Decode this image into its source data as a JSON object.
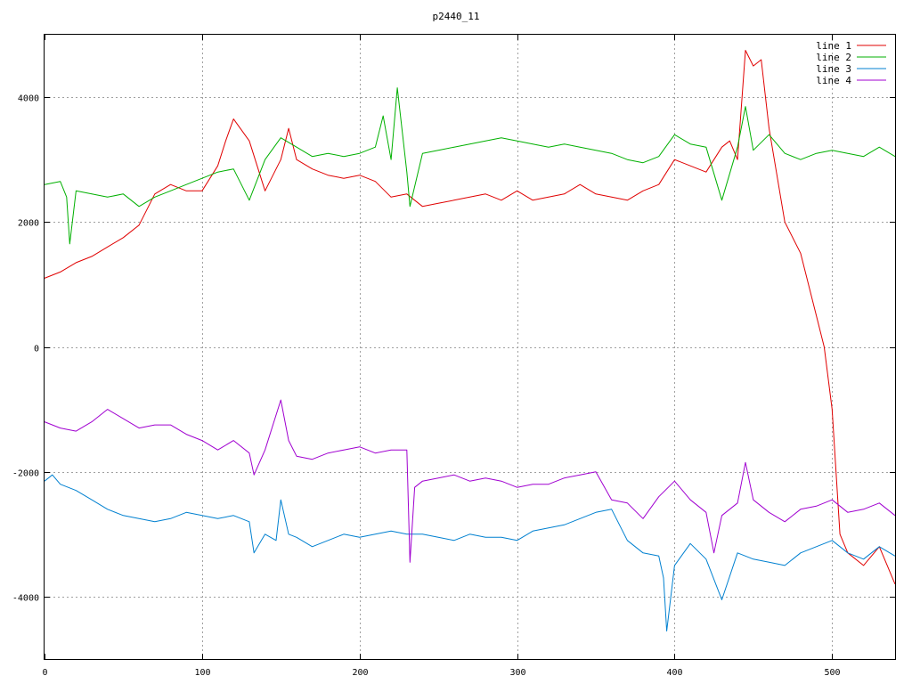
{
  "chart_data": {
    "type": "line",
    "title": "p2440_11",
    "xlabel": "",
    "ylabel": "",
    "xlim": [
      0,
      540
    ],
    "ylim": [
      -5000,
      5000
    ],
    "x_ticks": [
      0,
      100,
      200,
      300,
      400,
      500
    ],
    "y_ticks": [
      -4000,
      -2000,
      0,
      2000,
      4000
    ],
    "grid": true,
    "legend_position": "top-right",
    "series": [
      {
        "name": "line 1",
        "color": "#e00000",
        "x": [
          0,
          10,
          20,
          30,
          40,
          50,
          60,
          70,
          80,
          90,
          100,
          110,
          115,
          120,
          130,
          140,
          150,
          155,
          160,
          170,
          180,
          190,
          200,
          210,
          220,
          230,
          240,
          250,
          260,
          270,
          280,
          290,
          300,
          310,
          320,
          330,
          340,
          350,
          360,
          370,
          380,
          390,
          400,
          410,
          420,
          430,
          435,
          440,
          445,
          450,
          455,
          460,
          470,
          480,
          490,
          495,
          500,
          505,
          510,
          520,
          530,
          540
        ],
        "values": [
          1100,
          1200,
          1350,
          1450,
          1600,
          1750,
          1950,
          2450,
          2600,
          2500,
          2500,
          2900,
          3300,
          3650,
          3300,
          2500,
          3000,
          3500,
          3000,
          2850,
          2750,
          2700,
          2750,
          2650,
          2400,
          2450,
          2250,
          2300,
          2350,
          2400,
          2450,
          2350,
          2500,
          2350,
          2400,
          2450,
          2600,
          2450,
          2400,
          2350,
          2500,
          2600,
          3000,
          2900,
          2800,
          3200,
          3300,
          3000,
          4750,
          4500,
          4600,
          3500,
          2000,
          1500,
          500,
          0,
          -1000,
          -3000,
          -3300,
          -3500,
          -3200,
          -3800
        ]
      },
      {
        "name": "line 2",
        "color": "#00b000",
        "x": [
          0,
          10,
          14,
          16,
          20,
          30,
          40,
          50,
          60,
          70,
          80,
          90,
          100,
          110,
          120,
          130,
          140,
          150,
          160,
          170,
          180,
          190,
          200,
          210,
          215,
          220,
          224,
          230,
          232,
          240,
          250,
          260,
          270,
          280,
          290,
          300,
          310,
          320,
          330,
          340,
          350,
          360,
          370,
          380,
          390,
          400,
          410,
          420,
          430,
          440,
          445,
          450,
          460,
          470,
          480,
          490,
          500,
          510,
          520,
          530,
          540
        ],
        "values": [
          2600,
          2650,
          2400,
          1650,
          2500,
          2450,
          2400,
          2450,
          2250,
          2400,
          2500,
          2600,
          2700,
          2800,
          2850,
          2350,
          3000,
          3350,
          3200,
          3050,
          3100,
          3050,
          3100,
          3200,
          3700,
          3000,
          4150,
          2800,
          2250,
          3100,
          3150,
          3200,
          3250,
          3300,
          3350,
          3300,
          3250,
          3200,
          3250,
          3200,
          3150,
          3100,
          3000,
          2950,
          3050,
          3400,
          3250,
          3200,
          2350,
          3200,
          3850,
          3150,
          3400,
          3100,
          3000,
          3100,
          3150,
          3100,
          3050,
          3200,
          3050
        ]
      },
      {
        "name": "line 3",
        "color": "#0080d0",
        "x": [
          0,
          5,
          10,
          20,
          30,
          40,
          50,
          60,
          70,
          80,
          90,
          100,
          110,
          120,
          130,
          133,
          140,
          147,
          150,
          155,
          160,
          170,
          180,
          190,
          200,
          210,
          220,
          230,
          240,
          250,
          260,
          270,
          280,
          290,
          300,
          310,
          320,
          330,
          340,
          350,
          360,
          370,
          380,
          390,
          393,
          395,
          400,
          410,
          420,
          430,
          440,
          450,
          460,
          470,
          480,
          490,
          500,
          510,
          520,
          530,
          540
        ],
        "values": [
          -2150,
          -2050,
          -2200,
          -2300,
          -2450,
          -2600,
          -2700,
          -2750,
          -2800,
          -2750,
          -2650,
          -2700,
          -2750,
          -2700,
          -2800,
          -3300,
          -3000,
          -3100,
          -2450,
          -3000,
          -3050,
          -3200,
          -3100,
          -3000,
          -3050,
          -3000,
          -2950,
          -3000,
          -3000,
          -3050,
          -3100,
          -3000,
          -3050,
          -3050,
          -3100,
          -2950,
          -2900,
          -2850,
          -2750,
          -2650,
          -2600,
          -3100,
          -3300,
          -3350,
          -3700,
          -4550,
          -3500,
          -3150,
          -3400,
          -4050,
          -3300,
          -3400,
          -3450,
          -3500,
          -3300,
          -3200,
          -3100,
          -3300,
          -3400,
          -3200,
          -3350
        ]
      },
      {
        "name": "line 4",
        "color": "#a000d0",
        "x": [
          0,
          10,
          20,
          30,
          40,
          50,
          60,
          70,
          80,
          90,
          100,
          110,
          120,
          130,
          133,
          140,
          150,
          155,
          160,
          170,
          180,
          190,
          200,
          210,
          220,
          230,
          232,
          235,
          240,
          250,
          260,
          270,
          280,
          290,
          300,
          310,
          320,
          330,
          340,
          350,
          360,
          370,
          380,
          390,
          400,
          410,
          420,
          425,
          430,
          440,
          445,
          450,
          460,
          470,
          480,
          490,
          500,
          510,
          520,
          530,
          540
        ],
        "values": [
          -1200,
          -1300,
          -1350,
          -1200,
          -1000,
          -1150,
          -1300,
          -1250,
          -1250,
          -1400,
          -1500,
          -1650,
          -1500,
          -1700,
          -2050,
          -1650,
          -850,
          -1500,
          -1750,
          -1800,
          -1700,
          -1650,
          -1600,
          -1700,
          -1650,
          -1650,
          -3450,
          -2250,
          -2150,
          -2100,
          -2050,
          -2150,
          -2100,
          -2150,
          -2250,
          -2200,
          -2200,
          -2100,
          -2050,
          -2000,
          -2450,
          -2500,
          -2750,
          -2400,
          -2150,
          -2450,
          -2650,
          -3300,
          -2700,
          -2500,
          -1850,
          -2450,
          -2650,
          -2800,
          -2600,
          -2550,
          -2450,
          -2650,
          -2600,
          -2500,
          -2700
        ]
      }
    ]
  }
}
